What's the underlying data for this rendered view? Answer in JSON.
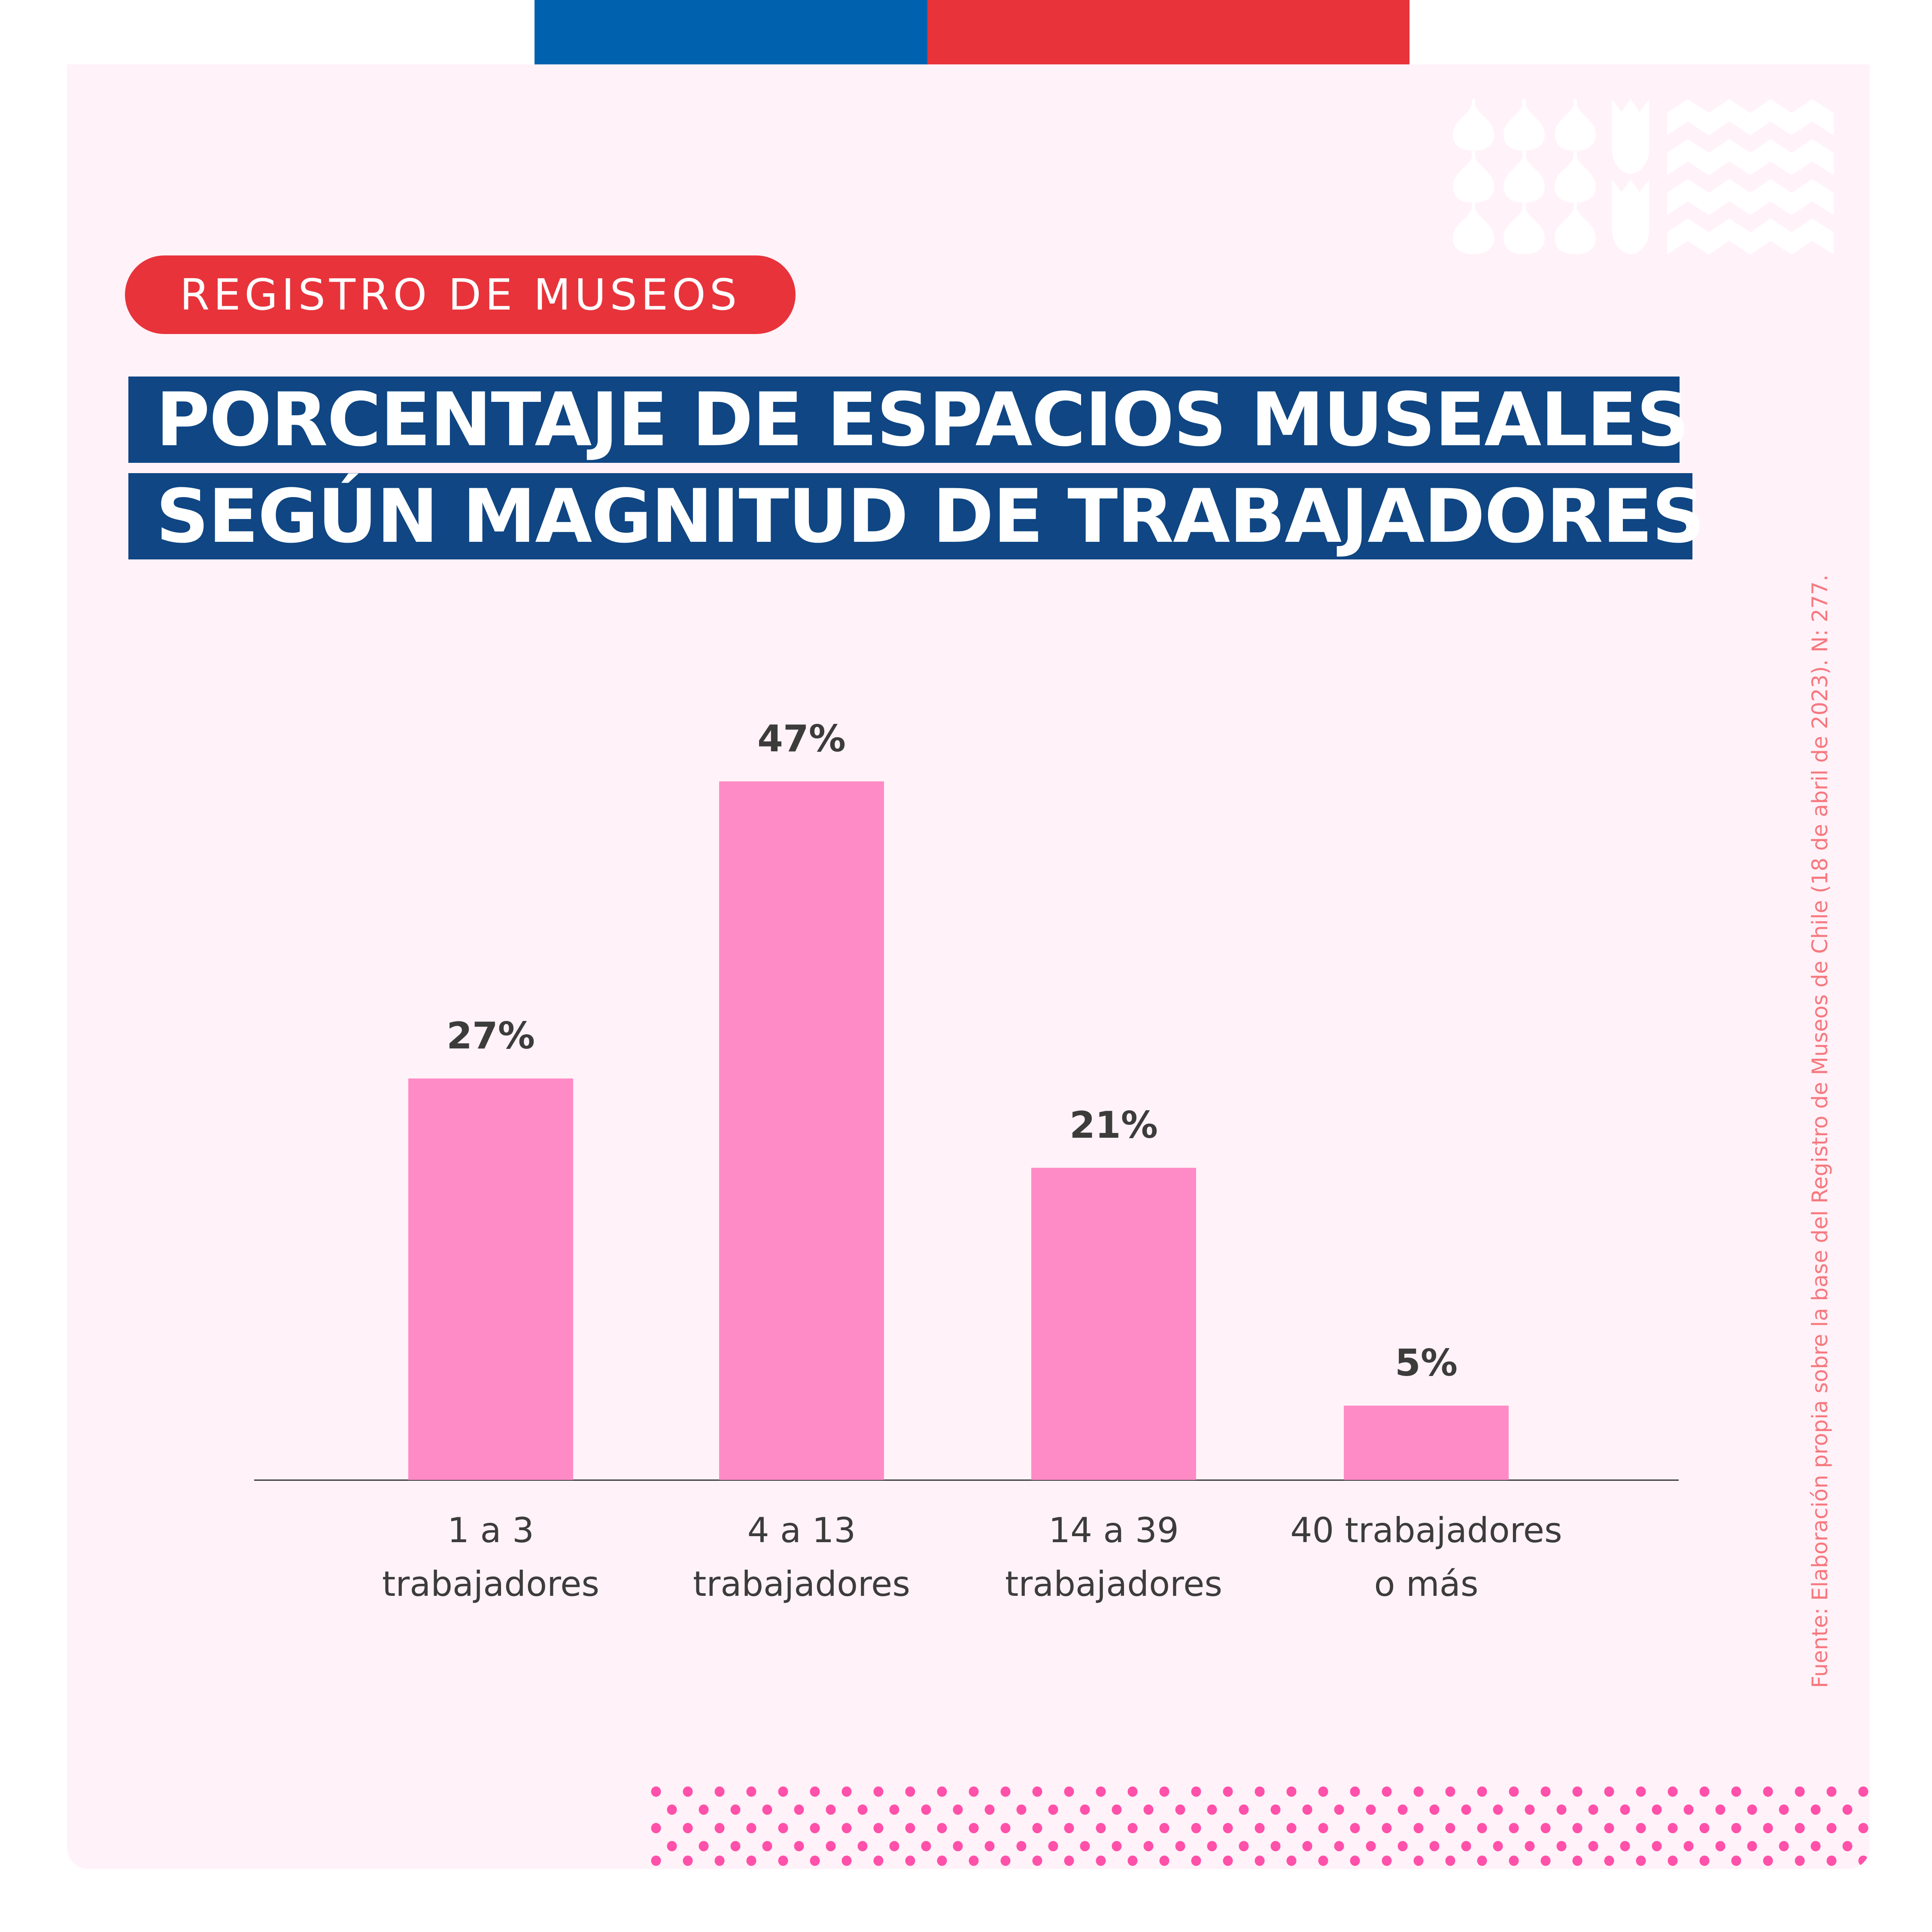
{
  "header": {
    "flag_colors": [
      "#0062AE",
      "#E8333B"
    ]
  },
  "badge": {
    "label": "REGISTRO DE MUSEOS",
    "color": "#E8333B"
  },
  "title": {
    "line1": "PORCENTAJE DE ESPACIOS MUSEALES",
    "line2": "SEGÚN MAGNITUD DE TRABAJADORES",
    "background": "#0F4683"
  },
  "source_note": "Fuente: Elaboración propia sobre la base del Registro de Museos de Chile (18 de abril de 2023). N: 277.",
  "chart_data": {
    "type": "bar",
    "title": "PORCENTAJE DE ESPACIOS MUSEALES SEGÚN MAGNITUD DE TRABAJADORES",
    "xlabel": "",
    "ylabel": "",
    "categories": [
      [
        "1 a 3",
        "trabajadores"
      ],
      [
        "4 a 13",
        "trabajadores"
      ],
      [
        "14 a 39",
        "trabajadores"
      ],
      [
        "40 trabajadores",
        "o más"
      ]
    ],
    "values": [
      27,
      47,
      21,
      5
    ],
    "value_labels": [
      "27%",
      "47%",
      "21%",
      "5%"
    ],
    "unit": "%",
    "ylim": [
      0,
      47
    ],
    "grid": false,
    "bar_color": "#FF8BC6",
    "label_color": "#3C3C3B"
  }
}
